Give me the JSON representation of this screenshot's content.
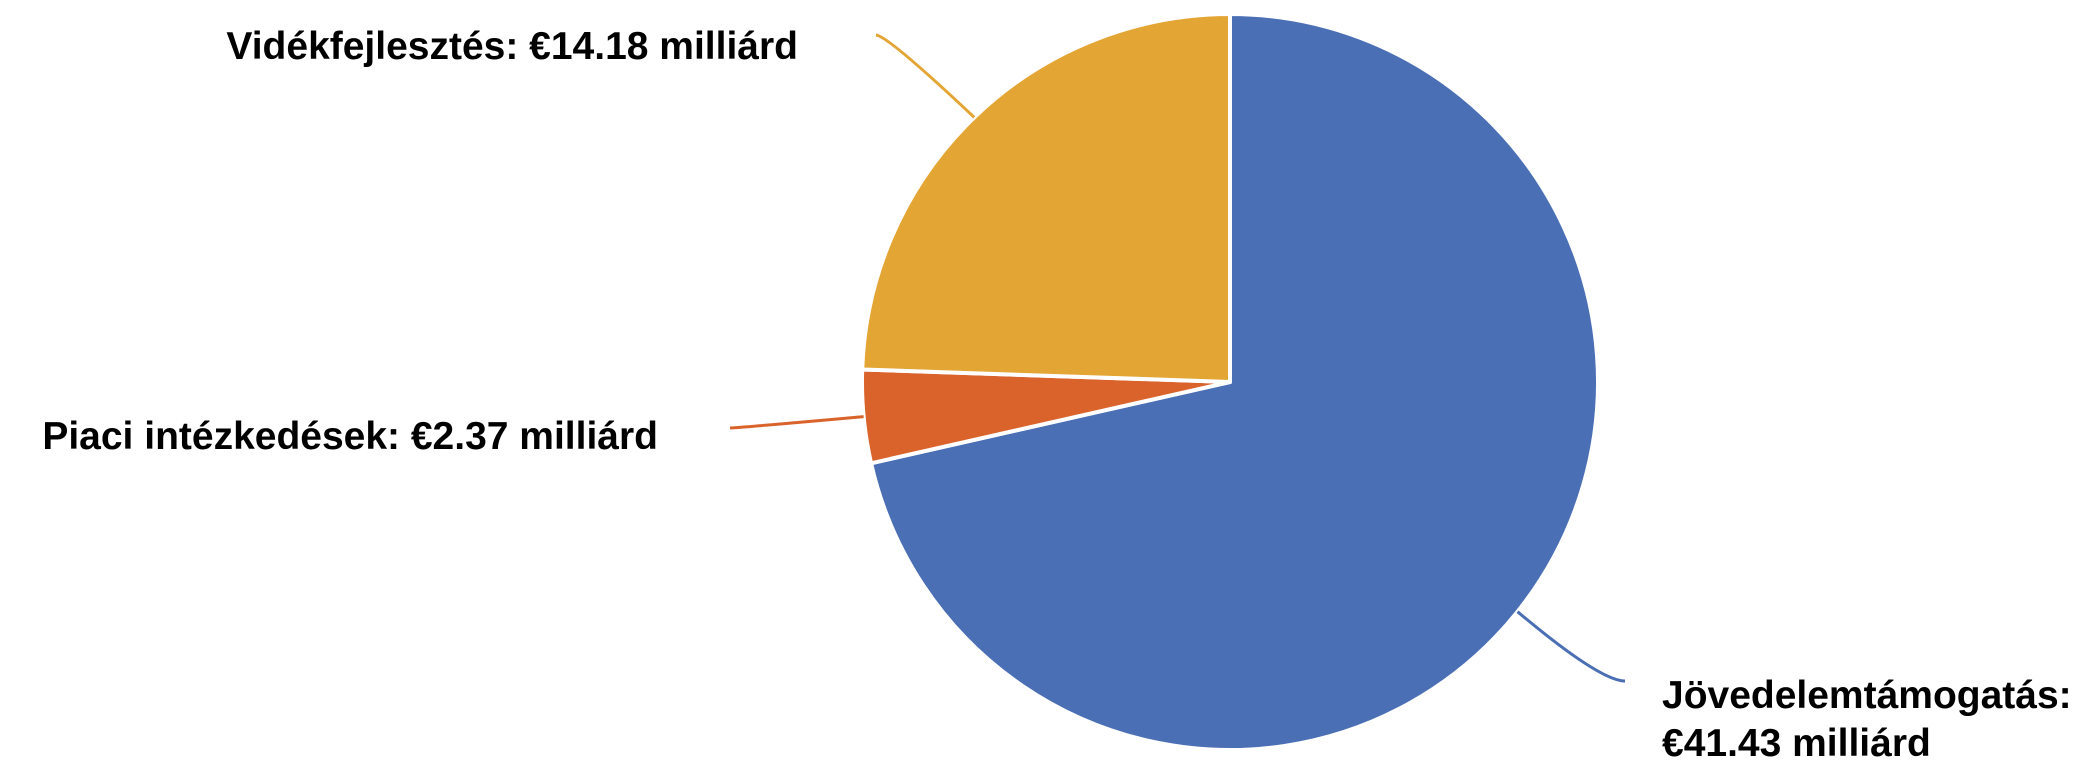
{
  "chart_data": {
    "type": "pie",
    "unit": "milliárd €",
    "slices": [
      {
        "name": "Jövedelemtámogatás",
        "value": 41.43,
        "label_lines": [
          "Jövedelemtámogatás:",
          "€41.43 milliárd"
        ],
        "color": "#4A6FB5"
      },
      {
        "name": "Piaci intézkedések",
        "value": 2.37,
        "label_lines": [
          "Piaci intézkedések: €2.37 milliárd"
        ],
        "color": "#D9632B"
      },
      {
        "name": "Vidékfejlesztés",
        "value": 14.18,
        "label_lines": [
          "Vidékfejlesztés: €14.18 milliárd"
        ],
        "color": "#E3A534"
      }
    ],
    "start_angle_deg": 0,
    "direction": "clockwise",
    "legend": "none",
    "slice_border_color": "#FFFFFF"
  }
}
